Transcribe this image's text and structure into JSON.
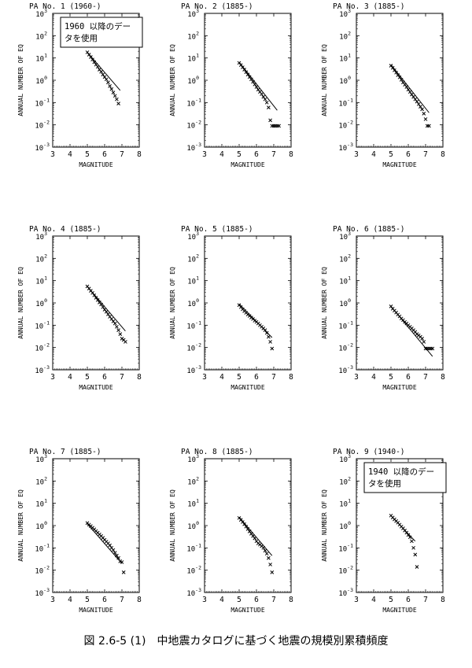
{
  "caption": "図 2.6-5 (1)　中地震カタログに基づく地震の規模別累積頻度",
  "common": {
    "xlabel": "MAGNITUDE",
    "ylabel": "ANNUAL NUMBER OF EQ",
    "xticks": [
      "3",
      "4",
      "5",
      "6",
      "7",
      "8"
    ],
    "yticks": [
      "10",
      "10",
      "10",
      "10",
      "10",
      "10",
      "10"
    ],
    "ytick_exponents": [
      "-3",
      "-2",
      "-1",
      "0",
      "1",
      "2",
      "3"
    ]
  },
  "chart_data": [
    {
      "type": "scatter",
      "title": "PA No. 1 (1960-)",
      "note": "1960 以降のデー\nタを使用",
      "xlim": [
        3,
        8
      ],
      "ylim": [
        0.001,
        1000
      ],
      "yscale": "log",
      "xlabel": "MAGNITUDE",
      "ylabel": "ANNUAL NUMBER OF EQ",
      "grid": false,
      "points": [
        [
          5.0,
          18
        ],
        [
          5.1,
          14
        ],
        [
          5.2,
          11
        ],
        [
          5.3,
          8.5
        ],
        [
          5.4,
          6.5
        ],
        [
          5.5,
          5
        ],
        [
          5.6,
          4
        ],
        [
          5.7,
          3
        ],
        [
          5.8,
          2.4
        ],
        [
          5.9,
          1.8
        ],
        [
          6.0,
          1.4
        ],
        [
          6.1,
          1.1
        ],
        [
          6.2,
          0.8
        ],
        [
          6.3,
          0.55
        ],
        [
          6.4,
          0.4
        ],
        [
          6.5,
          0.28
        ],
        [
          6.6,
          0.2
        ],
        [
          6.7,
          0.14
        ],
        [
          6.8,
          0.09
        ]
      ],
      "fit_line": [
        [
          5.0,
          18
        ],
        [
          6.9,
          0.35
        ]
      ]
    },
    {
      "type": "scatter",
      "title": "PA No. 2 (1885-)",
      "xlim": [
        3,
        8
      ],
      "ylim": [
        0.001,
        1000
      ],
      "yscale": "log",
      "xlabel": "MAGNITUDE",
      "ylabel": "ANNUAL NUMBER OF EQ",
      "grid": false,
      "points": [
        [
          5.0,
          6
        ],
        [
          5.1,
          4.8
        ],
        [
          5.2,
          3.8
        ],
        [
          5.3,
          3
        ],
        [
          5.4,
          2.3
        ],
        [
          5.5,
          1.8
        ],
        [
          5.6,
          1.4
        ],
        [
          5.7,
          1.1
        ],
        [
          5.8,
          0.85
        ],
        [
          5.9,
          0.65
        ],
        [
          6.0,
          0.5
        ],
        [
          6.1,
          0.38
        ],
        [
          6.2,
          0.3
        ],
        [
          6.3,
          0.24
        ],
        [
          6.4,
          0.18
        ],
        [
          6.5,
          0.14
        ],
        [
          6.6,
          0.1
        ],
        [
          6.7,
          0.06
        ],
        [
          6.8,
          0.016
        ],
        [
          6.9,
          0.009
        ],
        [
          7.0,
          0.009
        ],
        [
          7.1,
          0.009
        ],
        [
          7.2,
          0.009
        ],
        [
          7.3,
          0.009
        ]
      ],
      "fit_line": [
        [
          5.0,
          6.5
        ],
        [
          7.2,
          0.045
        ]
      ]
    },
    {
      "type": "scatter",
      "title": "PA No. 3 (1885-)",
      "xlim": [
        3,
        8
      ],
      "ylim": [
        0.001,
        1000
      ],
      "yscale": "log",
      "xlabel": "MAGNITUDE",
      "ylabel": "ANNUAL NUMBER OF EQ",
      "grid": false,
      "points": [
        [
          5.0,
          4.5
        ],
        [
          5.1,
          3.6
        ],
        [
          5.2,
          2.8
        ],
        [
          5.3,
          2.2
        ],
        [
          5.4,
          1.7
        ],
        [
          5.5,
          1.35
        ],
        [
          5.6,
          1.05
        ],
        [
          5.7,
          0.8
        ],
        [
          5.8,
          0.63
        ],
        [
          5.9,
          0.5
        ],
        [
          6.0,
          0.38
        ],
        [
          6.1,
          0.3
        ],
        [
          6.2,
          0.23
        ],
        [
          6.3,
          0.18
        ],
        [
          6.4,
          0.14
        ],
        [
          6.5,
          0.11
        ],
        [
          6.6,
          0.085
        ],
        [
          6.7,
          0.065
        ],
        [
          6.8,
          0.05
        ],
        [
          6.9,
          0.032
        ],
        [
          7.0,
          0.018
        ],
        [
          7.1,
          0.009
        ],
        [
          7.2,
          0.009
        ]
      ],
      "fit_line": [
        [
          5.0,
          5
        ],
        [
          7.2,
          0.035
        ]
      ]
    },
    {
      "type": "scatter",
      "title": "PA No. 4 (1885-)",
      "xlim": [
        3,
        8
      ],
      "ylim": [
        0.001,
        1000
      ],
      "yscale": "log",
      "xlabel": "MAGNITUDE",
      "ylabel": "ANNUAL NUMBER OF EQ",
      "grid": false,
      "points": [
        [
          5.0,
          5.5
        ],
        [
          5.1,
          4.4
        ],
        [
          5.2,
          3.5
        ],
        [
          5.3,
          2.8
        ],
        [
          5.4,
          2.2
        ],
        [
          5.5,
          1.7
        ],
        [
          5.6,
          1.35
        ],
        [
          5.7,
          1.05
        ],
        [
          5.8,
          0.85
        ],
        [
          5.9,
          0.65
        ],
        [
          6.0,
          0.5
        ],
        [
          6.1,
          0.4
        ],
        [
          6.2,
          0.31
        ],
        [
          6.3,
          0.24
        ],
        [
          6.4,
          0.19
        ],
        [
          6.5,
          0.15
        ],
        [
          6.6,
          0.12
        ],
        [
          6.7,
          0.085
        ],
        [
          6.8,
          0.06
        ],
        [
          6.9,
          0.04
        ],
        [
          7.0,
          0.025
        ],
        [
          7.1,
          0.022
        ],
        [
          7.2,
          0.018
        ]
      ],
      "fit_line": [
        [
          5.0,
          5.5
        ],
        [
          7.2,
          0.055
        ]
      ]
    },
    {
      "type": "scatter",
      "title": "PA No. 5 (1885-)",
      "xlim": [
        3,
        8
      ],
      "ylim": [
        0.001,
        1000
      ],
      "yscale": "log",
      "xlabel": "MAGNITUDE",
      "ylabel": "ANNUAL NUMBER OF EQ",
      "grid": false,
      "points": [
        [
          5.0,
          0.8
        ],
        [
          5.1,
          0.65
        ],
        [
          5.2,
          0.52
        ],
        [
          5.3,
          0.43
        ],
        [
          5.4,
          0.36
        ],
        [
          5.5,
          0.3
        ],
        [
          5.6,
          0.26
        ],
        [
          5.7,
          0.22
        ],
        [
          5.8,
          0.19
        ],
        [
          5.9,
          0.16
        ],
        [
          6.0,
          0.14
        ],
        [
          6.1,
          0.12
        ],
        [
          6.2,
          0.1
        ],
        [
          6.3,
          0.085
        ],
        [
          6.4,
          0.072
        ],
        [
          6.5,
          0.06
        ],
        [
          6.6,
          0.045
        ],
        [
          6.7,
          0.03
        ],
        [
          6.8,
          0.018
        ],
        [
          6.9,
          0.009
        ]
      ],
      "fit_line": [
        [
          5.0,
          0.9
        ],
        [
          6.9,
          0.028
        ]
      ]
    },
    {
      "type": "scatter",
      "title": "PA No. 6 (1885-)",
      "xlim": [
        3,
        8
      ],
      "ylim": [
        0.001,
        1000
      ],
      "yscale": "log",
      "xlabel": "MAGNITUDE",
      "ylabel": "ANNUAL NUMBER OF EQ",
      "grid": false,
      "points": [
        [
          5.0,
          0.7
        ],
        [
          5.1,
          0.55
        ],
        [
          5.2,
          0.45
        ],
        [
          5.3,
          0.37
        ],
        [
          5.4,
          0.3
        ],
        [
          5.5,
          0.25
        ],
        [
          5.6,
          0.2
        ],
        [
          5.7,
          0.17
        ],
        [
          5.8,
          0.14
        ],
        [
          5.9,
          0.12
        ],
        [
          6.0,
          0.1
        ],
        [
          6.1,
          0.085
        ],
        [
          6.2,
          0.072
        ],
        [
          6.3,
          0.06
        ],
        [
          6.4,
          0.05
        ],
        [
          6.5,
          0.04
        ],
        [
          6.6,
          0.035
        ],
        [
          6.7,
          0.03
        ],
        [
          6.8,
          0.025
        ],
        [
          6.9,
          0.018
        ],
        [
          7.0,
          0.009
        ],
        [
          7.1,
          0.009
        ],
        [
          7.2,
          0.009
        ],
        [
          7.3,
          0.009
        ],
        [
          7.4,
          0.009
        ]
      ],
      "fit_line": [
        [
          5.0,
          0.7
        ],
        [
          7.4,
          0.004
        ]
      ]
    },
    {
      "type": "scatter",
      "title": "PA No. 7 (1885-)",
      "xlim": [
        3,
        8
      ],
      "ylim": [
        0.001,
        1000
      ],
      "yscale": "log",
      "xlabel": "MAGNITUDE",
      "ylabel": "ANNUAL NUMBER OF EQ",
      "grid": false,
      "points": [
        [
          5.0,
          1.3
        ],
        [
          5.1,
          1.1
        ],
        [
          5.2,
          0.95
        ],
        [
          5.3,
          0.8
        ],
        [
          5.4,
          0.68
        ],
        [
          5.5,
          0.57
        ],
        [
          5.6,
          0.48
        ],
        [
          5.7,
          0.4
        ],
        [
          5.8,
          0.34
        ],
        [
          5.9,
          0.28
        ],
        [
          6.0,
          0.23
        ],
        [
          6.1,
          0.19
        ],
        [
          6.2,
          0.16
        ],
        [
          6.3,
          0.13
        ],
        [
          6.4,
          0.1
        ],
        [
          6.5,
          0.08
        ],
        [
          6.6,
          0.06
        ],
        [
          6.7,
          0.045
        ],
        [
          6.8,
          0.035
        ],
        [
          6.9,
          0.025
        ],
        [
          7.0,
          0.023
        ],
        [
          7.1,
          0.008
        ]
      ],
      "fit_line": [
        [
          5.0,
          1.2
        ],
        [
          7.0,
          0.02
        ]
      ]
    },
    {
      "type": "scatter",
      "title": "PA No. 8 (1885-)",
      "xlim": [
        3,
        8
      ],
      "ylim": [
        0.001,
        1000
      ],
      "yscale": "log",
      "xlabel": "MAGNITUDE",
      "ylabel": "ANNUAL NUMBER OF EQ",
      "grid": false,
      "points": [
        [
          5.0,
          2.2
        ],
        [
          5.1,
          1.8
        ],
        [
          5.2,
          1.45
        ],
        [
          5.3,
          1.15
        ],
        [
          5.4,
          0.9
        ],
        [
          5.5,
          0.7
        ],
        [
          5.6,
          0.55
        ],
        [
          5.7,
          0.43
        ],
        [
          5.8,
          0.34
        ],
        [
          5.9,
          0.27
        ],
        [
          6.0,
          0.2
        ],
        [
          6.1,
          0.16
        ],
        [
          6.2,
          0.14
        ],
        [
          6.3,
          0.12
        ],
        [
          6.4,
          0.1
        ],
        [
          6.5,
          0.075
        ],
        [
          6.6,
          0.055
        ],
        [
          6.7,
          0.035
        ],
        [
          6.8,
          0.018
        ],
        [
          6.9,
          0.008
        ]
      ],
      "fit_line": [
        [
          5.0,
          2.4
        ],
        [
          6.9,
          0.045
        ]
      ]
    },
    {
      "type": "scatter",
      "title": "PA No. 9 (1940-)",
      "note": "1940 以降のデー\nタを使用",
      "xlim": [
        3,
        8
      ],
      "ylim": [
        0.001,
        1000
      ],
      "yscale": "log",
      "xlabel": "MAGNITUDE",
      "ylabel": "ANNUAL NUMBER OF EQ",
      "grid": false,
      "points": [
        [
          5.0,
          2.8
        ],
        [
          5.1,
          2.3
        ],
        [
          5.2,
          1.9
        ],
        [
          5.3,
          1.6
        ],
        [
          5.4,
          1.35
        ],
        [
          5.5,
          1.1
        ],
        [
          5.6,
          0.9
        ],
        [
          5.7,
          0.75
        ],
        [
          5.8,
          0.6
        ],
        [
          5.9,
          0.48
        ],
        [
          6.0,
          0.38
        ],
        [
          6.1,
          0.3
        ],
        [
          6.2,
          0.2
        ],
        [
          6.3,
          0.1
        ],
        [
          6.4,
          0.05
        ],
        [
          6.5,
          0.014
        ]
      ],
      "fit_line": [
        [
          5.0,
          2.8
        ],
        [
          6.4,
          0.2
        ]
      ]
    }
  ]
}
